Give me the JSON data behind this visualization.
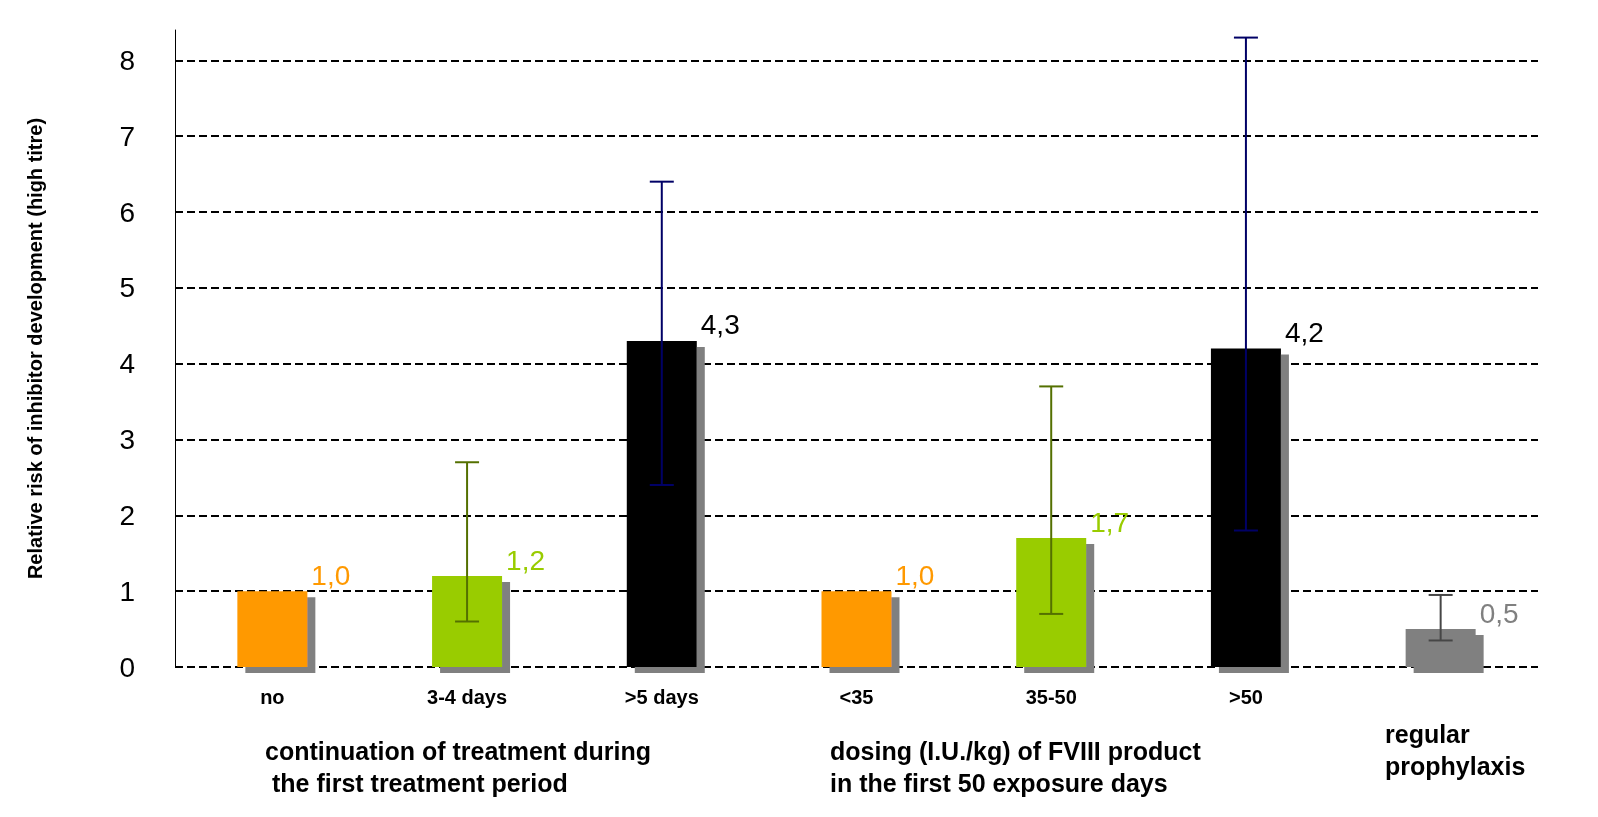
{
  "chart_data": {
    "type": "bar",
    "ylabel": "Relative risk of inhibitor development (high titre)",
    "categories": [
      "no",
      "3-4 days",
      ">5 days",
      "<35",
      "35-50",
      ">50",
      null
    ],
    "values": [
      1.0,
      1.2,
      4.3,
      1.0,
      1.7,
      4.2,
      0.5
    ],
    "colors": [
      "#ff9900",
      "#99cc00",
      "#000000",
      "#ff9900",
      "#99cc00",
      "#000000",
      "#808080"
    ],
    "value_labels": [
      "1,0",
      "1,2",
      "4,3",
      "1,0",
      "1,7",
      "4,2",
      "0,5"
    ],
    "errors": [
      null,
      [
        0.6,
        2.7
      ],
      [
        2.4,
        6.4
      ],
      null,
      [
        0.7,
        3.7
      ],
      [
        1.8,
        8.3
      ],
      [
        0.35,
        0.95
      ]
    ],
    "ylim": [
      0,
      8.4
    ],
    "yticks": [
      0,
      1,
      2,
      3,
      4,
      5,
      6,
      7,
      8
    ],
    "grid": "y",
    "annotations": [
      "continuation of treatment during\n the first treatment period",
      "dosing (I.U./kg) of FVIII product\nin the first 50 exposure days",
      "regular\nprophylaxis"
    ]
  }
}
